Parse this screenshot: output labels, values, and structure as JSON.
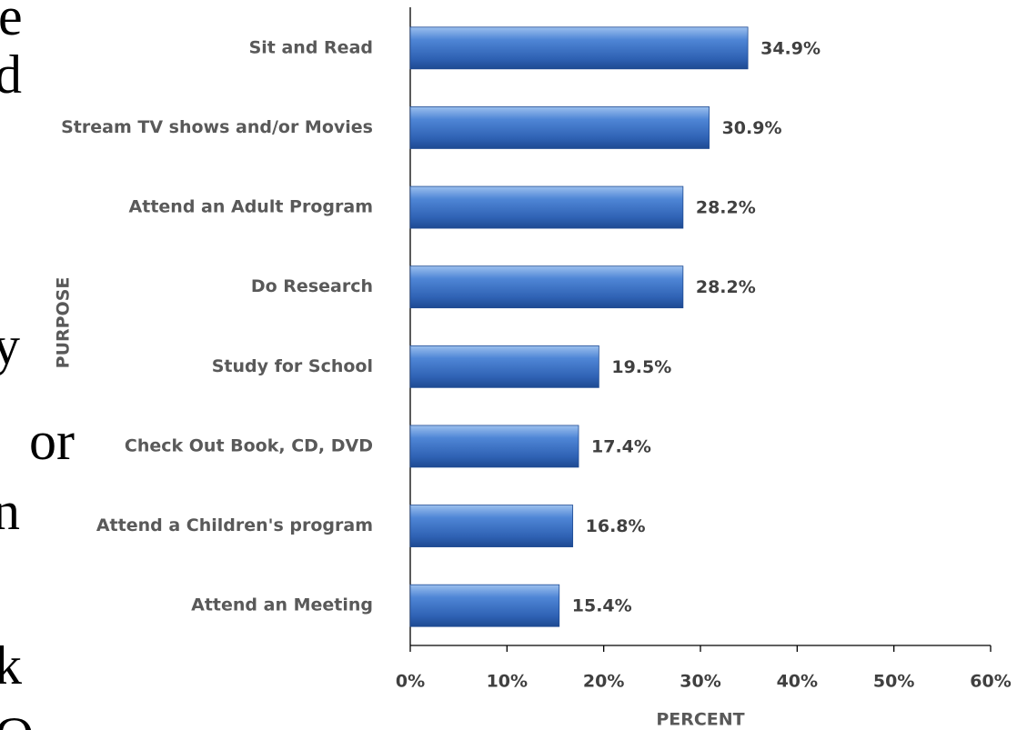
{
  "fragments": [
    "e",
    "d",
    "y",
    "or",
    "n",
    "k",
    "O"
  ],
  "chart_data": {
    "type": "barh",
    "categories": [
      "Sit and Read",
      "Stream TV shows and/or Movies",
      "Attend an Adult Program",
      "Do Research",
      "Study for School",
      "Check Out Book, CD, DVD",
      "Attend a Children's program",
      "Attend an Meeting"
    ],
    "values": [
      34.9,
      30.9,
      28.2,
      28.2,
      19.5,
      17.4,
      16.8,
      15.4
    ],
    "value_labels": [
      "34.9%",
      "30.9%",
      "28.2%",
      "28.2%",
      "19.5%",
      "17.4%",
      "16.8%",
      "15.4%"
    ],
    "color": "#3a6fc4",
    "xlabel": "PERCENT",
    "ylabel": "PURPOSE",
    "xlim": [
      0,
      60
    ],
    "xticks": [
      {
        "value": 0,
        "label": "0%"
      },
      {
        "value": 10,
        "label": "10%"
      },
      {
        "value": 20,
        "label": "20%"
      },
      {
        "value": 30,
        "label": "30%"
      },
      {
        "value": 40,
        "label": "40%"
      },
      {
        "value": 50,
        "label": "50%"
      },
      {
        "value": 60,
        "label": "60%"
      }
    ]
  }
}
